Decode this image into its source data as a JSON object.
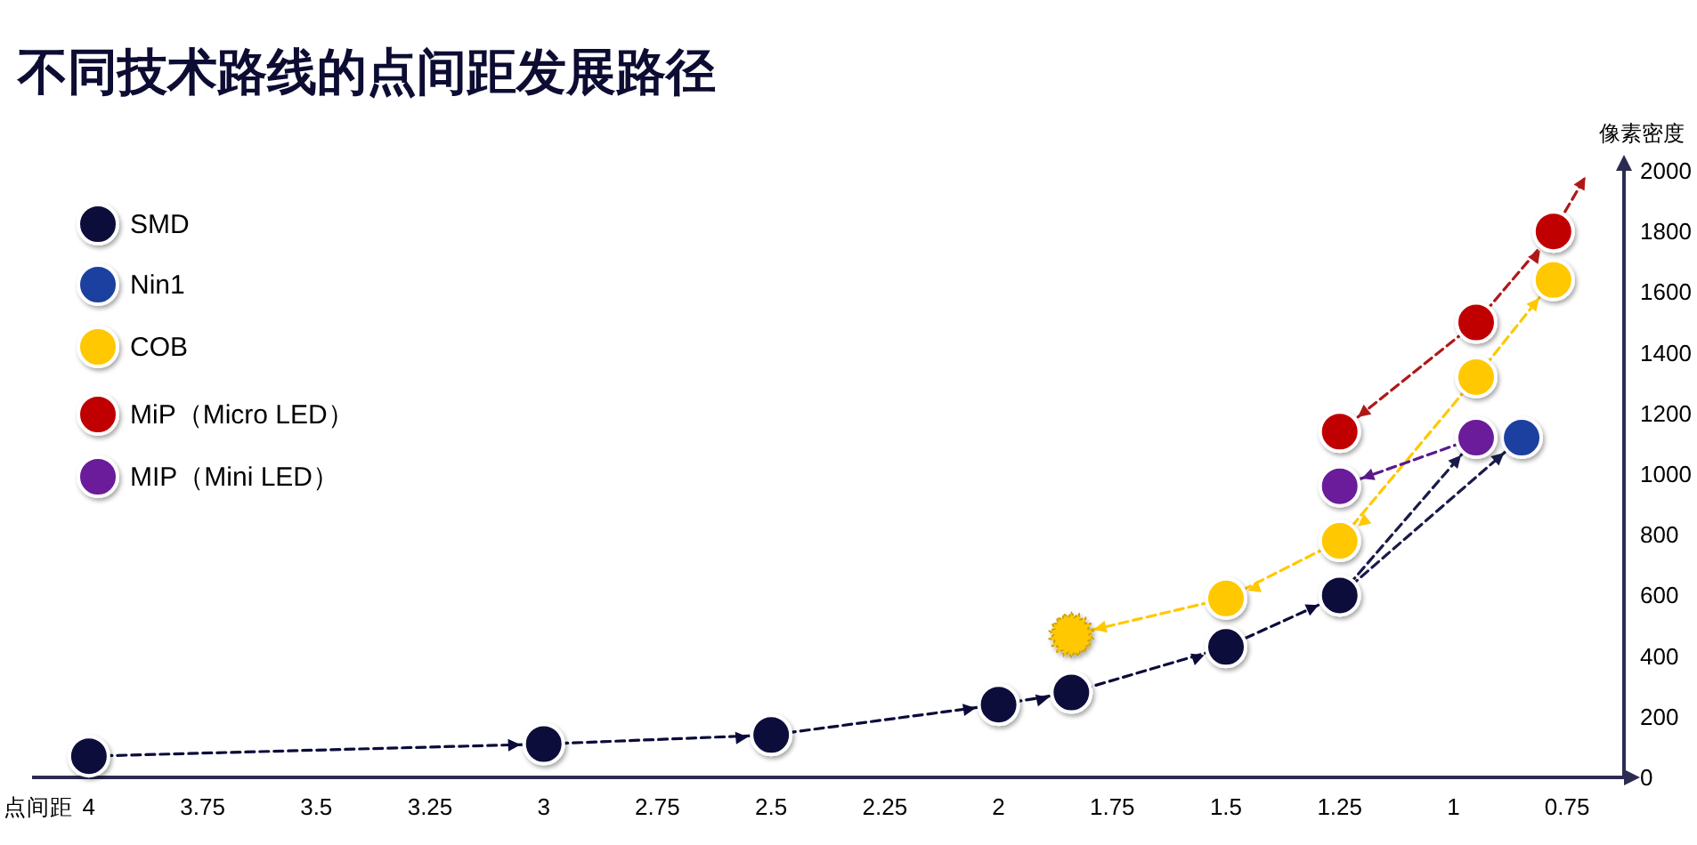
{
  "chart_data": {
    "type": "scatter",
    "title": "不同技术路线的点间距发展路径",
    "xlabel": "点间距",
    "ylabel": "像素密度",
    "xlim": [
      4.125,
      0.625
    ],
    "xticks": [
      4,
      3.75,
      3.5,
      3.25,
      3,
      2.75,
      2.5,
      2.25,
      2,
      1.75,
      1.5,
      1.25,
      1,
      0.75
    ],
    "ylim": [
      0,
      2000
    ],
    "yticks": [
      0,
      200,
      400,
      600,
      800,
      1000,
      1200,
      1400,
      1600,
      1800,
      2000
    ],
    "legend": "top left",
    "marker": "circle",
    "line_style": "dashed",
    "series": [
      {
        "name": "SMD",
        "type": "line",
        "color": "#0b0b3b",
        "x": [
          4,
          3,
          2.5,
          2,
          1.84,
          1.5,
          1.25
        ],
        "values": [
          70,
          110,
          140,
          240,
          280,
          430,
          600
        ]
      },
      {
        "name": "Nin1",
        "color": "#1f3fa0",
        "x": [
          0.85
        ],
        "values": [
          1120
        ]
      },
      {
        "name": "COB",
        "color": "#ffc800",
        "x": [
          0.78,
          0.95,
          1.25,
          1.5
        ],
        "values": [
          1640,
          1320,
          780,
          590
        ]
      },
      {
        "name": "MiP（Micro LED）",
        "color": "#c00000",
        "x": [
          0.78,
          0.95,
          1.25
        ],
        "values": [
          1800,
          1500,
          1140
        ]
      },
      {
        "name": "MIP（Mini LED）",
        "color": "#6a1b9a",
        "x": [
          0.95,
          1.25
        ],
        "values": [
          1120,
          960
        ]
      },
      {
        "color": "#ffc800",
        "marker": "star",
        "x": [
          1.84
        ],
        "values": [
          470
        ]
      },
      {
        "type": "line",
        "marker": "none",
        "color": "#1a1a4a",
        "x": [
          1.25,
          0.95
        ],
        "values": [
          600,
          1120
        ]
      },
      {
        "type": "line",
        "marker": "none",
        "color": "#1a1a4a",
        "x": [
          1.25,
          0.85
        ],
        "values": [
          600,
          1120
        ]
      },
      {
        "type": "line",
        "marker": "none",
        "color": "#ffc800",
        "x": [
          0.95,
          0.78
        ],
        "values": [
          1320,
          1640
        ]
      },
      {
        "type": "line",
        "marker": "none",
        "color": "#ffc800",
        "x": [
          0.95,
          1.25,
          1.5,
          1.84
        ],
        "values": [
          1320,
          780,
          590,
          470
        ]
      },
      {
        "type": "line",
        "marker": "none",
        "color": "#b01818",
        "x": [
          0.95,
          1.25
        ],
        "values": [
          1500,
          1140
        ]
      },
      {
        "type": "line",
        "marker": "none",
        "color": "#b01818",
        "x": [
          0.95,
          0.78,
          0.71
        ],
        "values": [
          1500,
          1800,
          1980
        ]
      },
      {
        "type": "line",
        "marker": "none",
        "color": "#5a1a8a",
        "x": [
          0.95,
          1.25
        ],
        "values": [
          1120,
          960
        ]
      }
    ]
  }
}
